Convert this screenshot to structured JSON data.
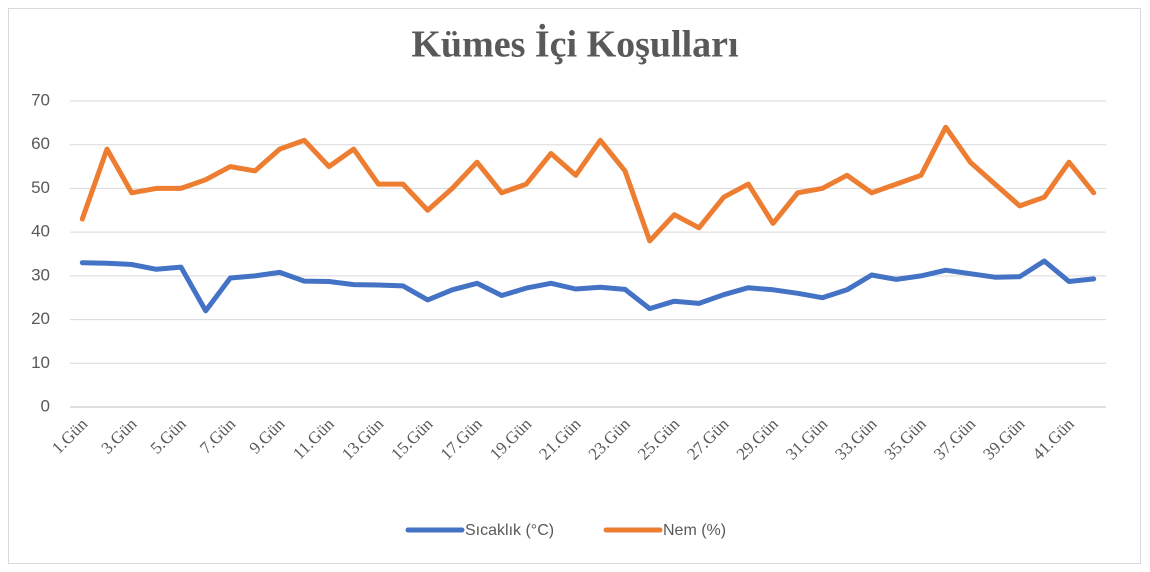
{
  "chart_data": {
    "type": "line",
    "title": "Kümes İçi Koşulları",
    "categories": [
      "1.Gün",
      null,
      "3.Gün",
      null,
      "5.Gün",
      null,
      "7.Gün",
      null,
      "9.Gün",
      null,
      "11.Gün",
      null,
      "13.Gün",
      null,
      "15.Gün",
      null,
      "17.Gün",
      null,
      "19.Gün",
      null,
      "21.Gün",
      null,
      "23.Gün",
      null,
      "25.Gün",
      null,
      "27.Gün",
      null,
      "29.Gün",
      null,
      "31.Gün",
      null,
      "33.Gün",
      null,
      "35.Gün",
      null,
      "37.Gün",
      null,
      "39.Gün",
      null,
      "41.Gün",
      null
    ],
    "series": [
      {
        "name": "Sıcaklık (°C)",
        "color": "#4472c4",
        "values": [
          33,
          32.9,
          32.6,
          31.5,
          32,
          22,
          29.5,
          30,
          30.8,
          28.8,
          28.7,
          28,
          27.9,
          27.7,
          24.5,
          26.8,
          28.3,
          25.5,
          27.2,
          28.3,
          27,
          27.4,
          26.9,
          22.5,
          24.2,
          23.7,
          25.7,
          27.3,
          26.8,
          26,
          25,
          26.8,
          30.2,
          29.2,
          30,
          31.3,
          30.5,
          29.7,
          29.8,
          33.4,
          28.7,
          29.3
        ]
      },
      {
        "name": "Nem (%)",
        "color": "#ed7d31",
        "values": [
          43,
          59,
          49,
          50,
          50,
          52,
          55,
          54,
          59,
          61,
          55,
          59,
          51,
          51,
          45,
          50,
          56,
          49,
          51,
          58,
          53,
          61,
          54,
          38,
          44,
          41,
          48,
          51,
          42,
          49,
          50,
          53,
          49,
          51,
          53,
          64,
          56,
          51,
          46,
          48,
          56,
          49
        ]
      }
    ],
    "ylim": [
      0,
      70
    ],
    "yticks": [
      0,
      10,
      20,
      30,
      40,
      50,
      60,
      70
    ],
    "grid": true,
    "legend": "bottom"
  }
}
